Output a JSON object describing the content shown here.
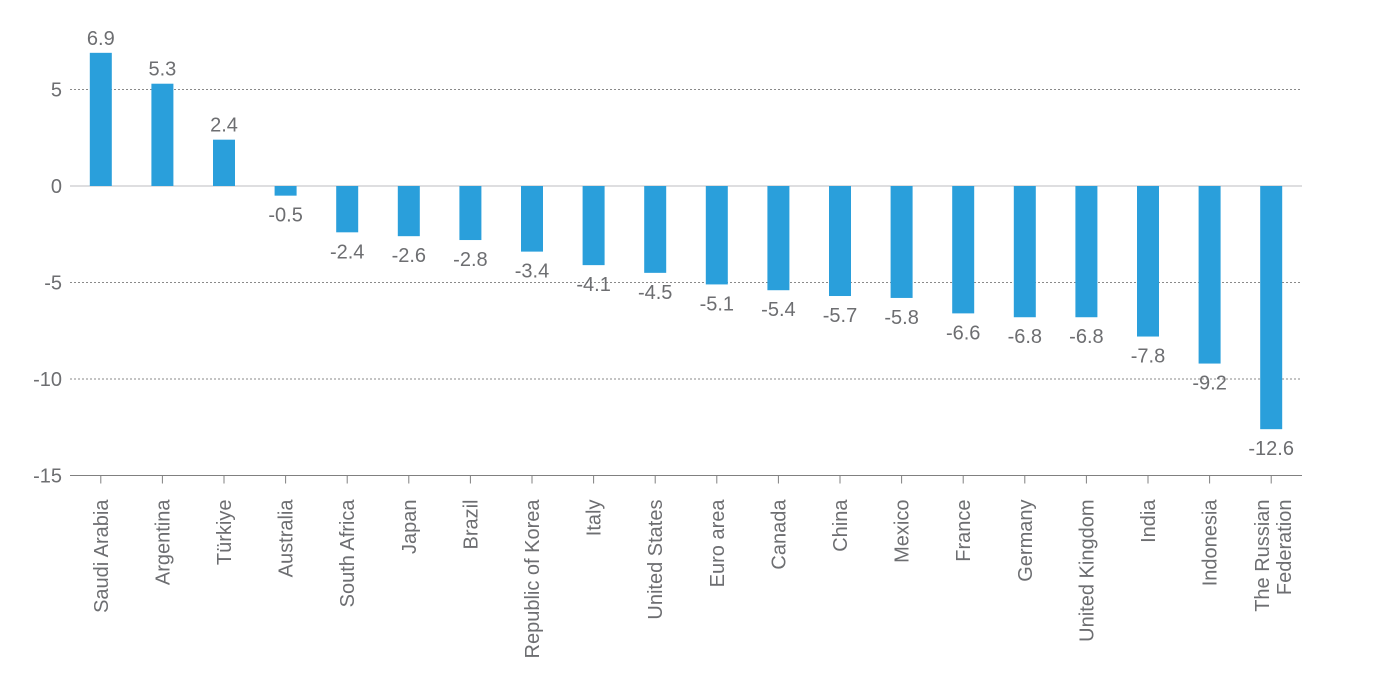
{
  "chart_data": {
    "type": "bar",
    "title": "",
    "xlabel": "",
    "ylabel": "",
    "ylim": [
      -15,
      7
    ],
    "yticks": [
      5,
      0,
      -5,
      -10,
      -15
    ],
    "grid": true,
    "bar_color": "#2a9fdb",
    "categories": [
      "Saudi Arabia",
      "Argentina",
      "Türkiye",
      "Australia",
      "South Africa",
      "Japan",
      "Brazil",
      "Republic of Korea",
      "Italy",
      "United States",
      "Euro area",
      "Canada",
      "China",
      "Mexico",
      "France",
      "Germany",
      "United Kingdom",
      "India",
      "Indonesia",
      "The Russian Federation"
    ],
    "values": [
      6.9,
      5.3,
      2.4,
      -0.5,
      -2.4,
      -2.6,
      -2.8,
      -3.4,
      -4.1,
      -4.5,
      -5.1,
      -5.4,
      -5.7,
      -5.8,
      -6.6,
      -6.8,
      -6.8,
      -7.8,
      -9.2,
      -12.6
    ]
  }
}
